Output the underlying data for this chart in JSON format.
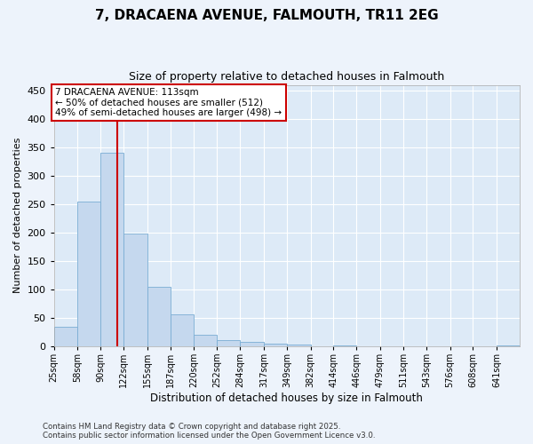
{
  "title": "7, DRACAENA AVENUE, FALMOUTH, TR11 2EG",
  "subtitle": "Size of property relative to detached houses in Falmouth",
  "xlabel": "Distribution of detached houses by size in Falmouth",
  "ylabel": "Number of detached properties",
  "bar_color": "#c5d8ee",
  "bar_edge_color": "#7aadd4",
  "background_color": "#ddeaf7",
  "fig_bg": "#edf3fb",
  "grid_color": "#ffffff",
  "property_size": 113,
  "property_line_color": "#cc0000",
  "ann_line1": "7 DRACAENA AVENUE: 113sqm",
  "ann_line2": "← 50% of detached houses are smaller (512)",
  "ann_line3": "49% of semi-detached houses are larger (498) →",
  "ann_box_edgecolor": "#cc0000",
  "footer_line1": "Contains HM Land Registry data © Crown copyright and database right 2025.",
  "footer_line2": "Contains public sector information licensed under the Open Government Licence v3.0.",
  "bins": [
    25,
    58,
    90,
    122,
    155,
    187,
    220,
    252,
    284,
    317,
    349,
    382,
    414,
    446,
    479,
    511,
    543,
    576,
    608,
    641,
    673
  ],
  "counts": [
    35,
    255,
    340,
    198,
    104,
    57,
    20,
    11,
    8,
    5,
    3,
    0,
    1,
    0,
    0,
    0,
    0,
    0,
    0,
    2
  ],
  "ylim": [
    0,
    460
  ],
  "yticks": [
    0,
    50,
    100,
    150,
    200,
    250,
    300,
    350,
    400,
    450
  ],
  "xlim": [
    25,
    673
  ]
}
